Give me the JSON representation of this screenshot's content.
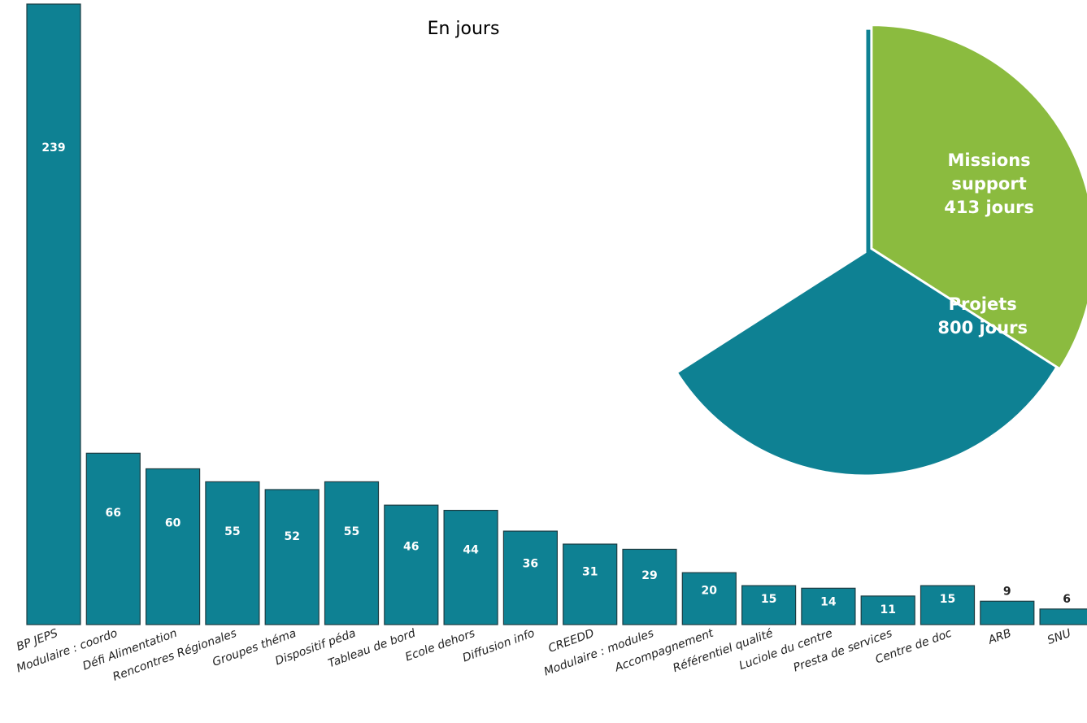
{
  "chart_data": [
    {
      "type": "bar",
      "title": "En jours",
      "categories": [
        "BP JEPS",
        "Modulaire : coordo",
        "Défi Alimentation",
        "Rencontres Régionales",
        "Groupes théma",
        "Dispositif péda",
        "Tableau de bord",
        "Ecole dehors",
        "Diffusion info",
        "CREEDD",
        "Modulaire : modules",
        "Accompagnement",
        "Référentiel qualité",
        "Luciole du centre",
        "Presta de services",
        "Centre de doc",
        "ARB",
        "SNU"
      ],
      "values": [
        239,
        66,
        60,
        55,
        52,
        55,
        46,
        44,
        36,
        31,
        29,
        20,
        15,
        14,
        11,
        15,
        9,
        6
      ],
      "color": "#0e8193"
    },
    {
      "type": "pie",
      "categories": [
        "Projets",
        "Missions support"
      ],
      "values": [
        800,
        413
      ],
      "value_labels": [
        "800 jours",
        "413 jours"
      ],
      "colors": [
        "#0e8193",
        "#8bbb3f"
      ]
    }
  ]
}
